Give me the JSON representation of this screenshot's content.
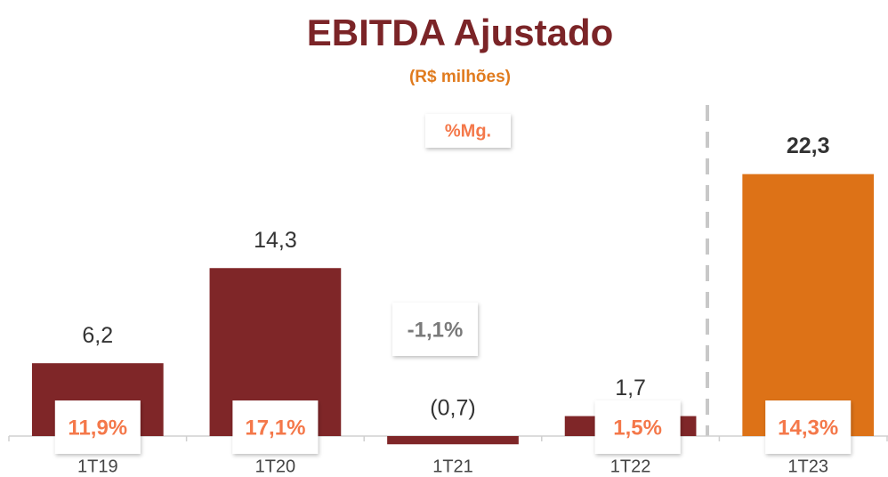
{
  "chart_data": {
    "type": "bar",
    "title": "EBITDA Ajustado",
    "subtitle": "(R$ milhões)",
    "categories": [
      "1T19",
      "1T20",
      "1T21",
      "1T22",
      "1T23"
    ],
    "values": [
      6.2,
      14.3,
      -0.7,
      1.7,
      22.3
    ],
    "value_labels": [
      "6,2",
      "14,3",
      "(0,7)",
      "1,7",
      "22,3"
    ],
    "colors": [
      "#7f2628",
      "#7f2628",
      "#7f2628",
      "#7f2628",
      "#dd7217"
    ],
    "ylim": [
      -2,
      25
    ],
    "margins": {
      "name": "%Mg.",
      "values": [
        11.9,
        17.1,
        -1.1,
        1.5,
        14.3
      ],
      "value_labels": [
        "11,9%",
        "17,1%",
        "-1,1%",
        "1,5%",
        "14,3%"
      ]
    }
  }
}
